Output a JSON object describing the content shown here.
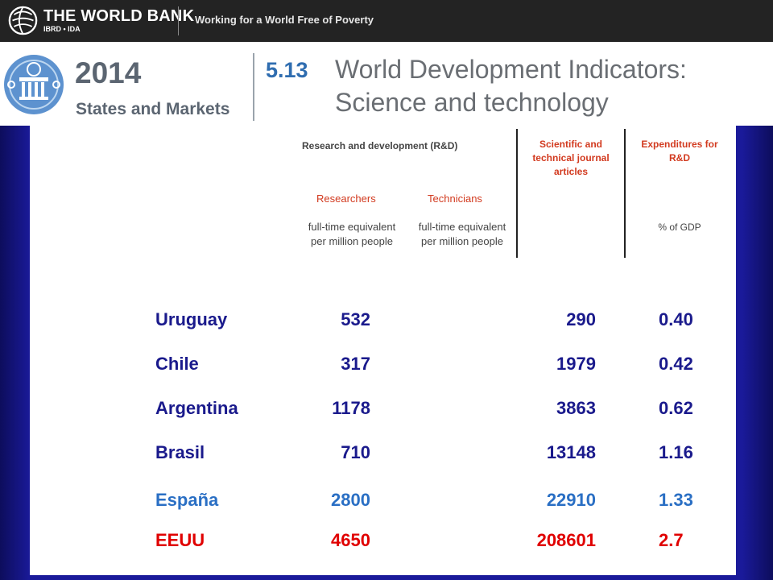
{
  "topbar": {
    "org_name": "THE WORLD BANK",
    "org_sub": "IBRD • IDA",
    "slogan": "Working for a World Free of Poverty"
  },
  "header": {
    "year": "2014",
    "section_name": "States and Markets",
    "section_number": "5.13",
    "title_line1": "World Development Indicators:",
    "title_line2": "Science and technology"
  },
  "column_headers": {
    "group": "Research and development (R&D)",
    "articles_line1": "Scientific and",
    "articles_line2": "technical journal",
    "articles_line3": "articles",
    "expenditures_line1": "Expenditures for",
    "expenditures_line2": "R&D",
    "researchers": "Researchers",
    "technicians": "Technicians",
    "unit_researchers_line1": "full-time equivalent",
    "unit_researchers_line2": "per million people",
    "unit_technicians_line1": "full-time equivalent",
    "unit_technicians_line2": "per million people",
    "unit_expenditures": "% of GDP"
  },
  "rows": [
    {
      "country": "Uruguay",
      "researchers": "532",
      "articles": "290",
      "expenditures": "0.40",
      "color": "#1a1a8c"
    },
    {
      "country": "Chile",
      "researchers": "317",
      "articles": "1979",
      "expenditures": "0.42",
      "color": "#1a1a8c"
    },
    {
      "country": "Argentina",
      "researchers": "1178",
      "articles": "3863",
      "expenditures": "0.62",
      "color": "#1a1a8c"
    },
    {
      "country": "Brasil",
      "researchers": "710",
      "articles": "13148",
      "expenditures": "1.16",
      "color": "#1a1a8c"
    },
    {
      "country": "España",
      "researchers": "2800",
      "articles": "22910",
      "expenditures": "1.33",
      "color": "#2a6fc4"
    },
    {
      "country": "EEUU",
      "researchers": "4650",
      "articles": "208601",
      "expenditures": "2.7",
      "color": "#e00000"
    }
  ]
}
